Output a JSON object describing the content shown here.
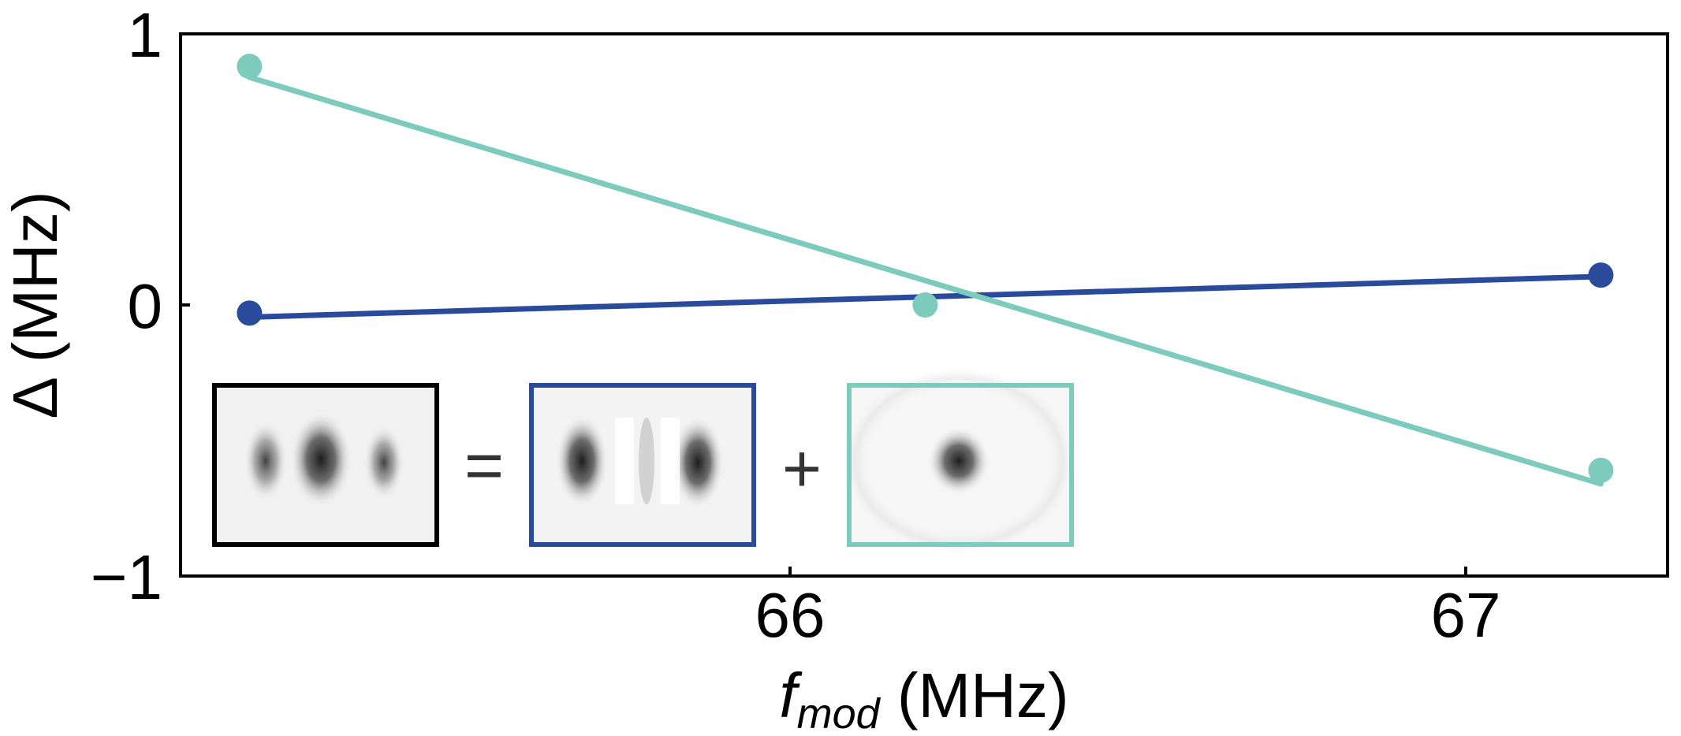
{
  "chart_data": {
    "type": "line",
    "xlabel_main": "f",
    "xlabel_sub": "mod",
    "xlabel_unit": " (MHz)",
    "ylabel": "Δ (MHz)",
    "xlim": [
      65.1,
      67.3
    ],
    "ylim": [
      -1,
      1
    ],
    "xticks": [
      66,
      67
    ],
    "yticks": [
      -1,
      0,
      1
    ],
    "ytick_labels": [
      "−1",
      "0",
      "1"
    ],
    "grid": false,
    "series": [
      {
        "color": "#2a4b9b",
        "points_x": [
          65.2,
          67.2
        ],
        "points_y": [
          -0.03,
          0.11
        ],
        "fit_x": [
          65.2,
          67.2
        ],
        "fit_y": [
          -0.045,
          0.105
        ]
      },
      {
        "color": "#7ccbbd",
        "points_x": [
          65.2,
          66.2,
          67.2
        ],
        "points_y": [
          0.88,
          0.0,
          -0.61
        ],
        "fit_x": [
          65.2,
          67.2
        ],
        "fit_y": [
          0.84,
          -0.66
        ]
      }
    ],
    "inset": {
      "equals": "=",
      "plus": "+",
      "panels": [
        {
          "border_color": "#000000"
        },
        {
          "border_color": "#2a4b9b"
        },
        {
          "border_color": "#7ccbbd"
        }
      ]
    }
  }
}
